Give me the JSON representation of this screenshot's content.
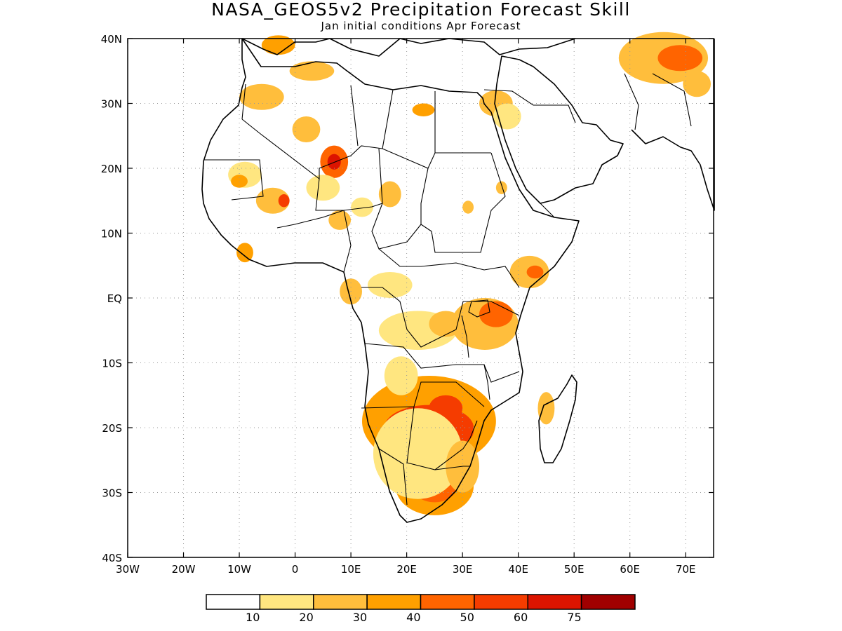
{
  "title": "NASA_GEOS5v2 Precipitation Forecast Skill",
  "subtitle": "Jan initial conditions  Apr Forecast",
  "map": {
    "lon_range": [
      -30,
      75
    ],
    "lat_range": [
      -40,
      40
    ],
    "lon_ticks": [
      {
        "value": -30,
        "label": "30W"
      },
      {
        "value": -20,
        "label": "20W"
      },
      {
        "value": -10,
        "label": "10W"
      },
      {
        "value": 0,
        "label": "0"
      },
      {
        "value": 10,
        "label": "10E"
      },
      {
        "value": 20,
        "label": "20E"
      },
      {
        "value": 30,
        "label": "30E"
      },
      {
        "value": 40,
        "label": "40E"
      },
      {
        "value": 50,
        "label": "50E"
      },
      {
        "value": 60,
        "label": "60E"
      },
      {
        "value": 70,
        "label": "70E"
      }
    ],
    "lat_ticks": [
      {
        "value": 40,
        "label": "40N"
      },
      {
        "value": 30,
        "label": "30N"
      },
      {
        "value": 20,
        "label": "20N"
      },
      {
        "value": 10,
        "label": "10N"
      },
      {
        "value": 0,
        "label": "EQ"
      },
      {
        "value": -10,
        "label": "10S"
      },
      {
        "value": -20,
        "label": "20S"
      },
      {
        "value": -30,
        "label": "30S"
      },
      {
        "value": -40,
        "label": "40S"
      }
    ],
    "grid": "dotted"
  },
  "colorbar": {
    "colors": [
      "#ffffff",
      "#ffe680",
      "#ffbe3c",
      "#ffa000",
      "#ff6400",
      "#f53c00",
      "#dc1400",
      "#a00000"
    ],
    "labels": [
      "10",
      "20",
      "30",
      "40",
      "50",
      "60",
      "75"
    ]
  },
  "skill_regions": [
    {
      "lon": 24,
      "lat": -19,
      "rx": 12,
      "ry": 7,
      "level": 3
    },
    {
      "lon": 24,
      "lat": -20,
      "rx": 8,
      "ry": 3.5,
      "level": 5
    },
    {
      "lon": 27,
      "lat": -17,
      "rx": 3,
      "ry": 2,
      "level": 5
    },
    {
      "lon": 29,
      "lat": -20.5,
      "rx": 3,
      "ry": 2,
      "level": 5
    },
    {
      "lon": 25,
      "lat": -29,
      "rx": 7,
      "ry": 4.5,
      "level": 3
    },
    {
      "lon": 25,
      "lat": -29,
      "rx": 4,
      "ry": 2.5,
      "level": 4
    },
    {
      "lon": 22,
      "lat": -24,
      "rx": 8,
      "ry": 7,
      "level": 1
    },
    {
      "lon": 30,
      "lat": -26,
      "rx": 3,
      "ry": 4,
      "level": 2
    },
    {
      "lon": 19,
      "lat": -12,
      "rx": 3,
      "ry": 3,
      "level": 1
    },
    {
      "lon": 22,
      "lat": -5,
      "rx": 7,
      "ry": 3,
      "level": 1
    },
    {
      "lon": 34,
      "lat": -4,
      "rx": 6,
      "ry": 4,
      "level": 2
    },
    {
      "lon": 36,
      "lat": -2.5,
      "rx": 3,
      "ry": 2,
      "level": 4
    },
    {
      "lon": 27,
      "lat": -4,
      "rx": 3,
      "ry": 2,
      "level": 2
    },
    {
      "lon": 17,
      "lat": 2,
      "rx": 4,
      "ry": 2,
      "level": 1
    },
    {
      "lon": 42,
      "lat": 4,
      "rx": 3.5,
      "ry": 2.5,
      "level": 2
    },
    {
      "lon": 43,
      "lat": 4,
      "rx": 1.5,
      "ry": 1,
      "level": 4
    },
    {
      "lon": 7,
      "lat": 21,
      "rx": 2.5,
      "ry": 2.5,
      "level": 4
    },
    {
      "lon": 7,
      "lat": 21,
      "rx": 1.2,
      "ry": 1.2,
      "level": 6
    },
    {
      "lon": -4,
      "lat": 15,
      "rx": 3,
      "ry": 2,
      "level": 2
    },
    {
      "lon": -2,
      "lat": 15,
      "rx": 1,
      "ry": 1,
      "level": 5
    },
    {
      "lon": -9,
      "lat": 19,
      "rx": 3,
      "ry": 2,
      "level": 1
    },
    {
      "lon": -10,
      "lat": 18,
      "rx": 1.5,
      "ry": 1,
      "level": 3
    },
    {
      "lon": 5,
      "lat": 17,
      "rx": 3,
      "ry": 2,
      "level": 1
    },
    {
      "lon": -6,
      "lat": 31,
      "rx": 4,
      "ry": 2,
      "level": 2
    },
    {
      "lon": 2,
      "lat": 26,
      "rx": 2.5,
      "ry": 2,
      "level": 2
    },
    {
      "lon": 3,
      "lat": 35,
      "rx": 4,
      "ry": 1.5,
      "level": 2
    },
    {
      "lon": -3,
      "lat": 39,
      "rx": 3,
      "ry": 1.5,
      "level": 3
    },
    {
      "lon": 23,
      "lat": 29,
      "rx": 2,
      "ry": 1,
      "level": 3
    },
    {
      "lon": 36,
      "lat": 30,
      "rx": 3,
      "ry": 2,
      "level": 2
    },
    {
      "lon": 38,
      "lat": 28,
      "rx": 2.5,
      "ry": 2,
      "level": 1
    },
    {
      "lon": 66,
      "lat": 37,
      "rx": 8,
      "ry": 4,
      "level": 2
    },
    {
      "lon": 69,
      "lat": 37,
      "rx": 4,
      "ry": 2,
      "level": 4
    },
    {
      "lon": 72,
      "lat": 33,
      "rx": 2.5,
      "ry": 2,
      "level": 2
    },
    {
      "lon": 17,
      "lat": 16,
      "rx": 2,
      "ry": 2,
      "level": 2
    },
    {
      "lon": 12,
      "lat": 14,
      "rx": 2,
      "ry": 1.5,
      "level": 1
    },
    {
      "lon": 8,
      "lat": 12,
      "rx": 2,
      "ry": 1.5,
      "level": 2
    },
    {
      "lon": -9,
      "lat": 7,
      "rx": 1.5,
      "ry": 1.5,
      "level": 3
    },
    {
      "lon": 10,
      "lat": 1,
      "rx": 2,
      "ry": 2,
      "level": 2
    },
    {
      "lon": 45,
      "lat": -17,
      "rx": 1.5,
      "ry": 2.5,
      "level": 2
    },
    {
      "lon": 37,
      "lat": 17,
      "rx": 1,
      "ry": 1,
      "level": 2
    },
    {
      "lon": 31,
      "lat": 14,
      "rx": 1,
      "ry": 1,
      "level": 2
    }
  ]
}
